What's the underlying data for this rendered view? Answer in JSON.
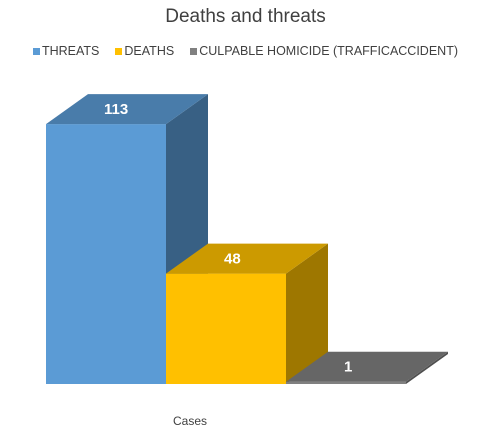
{
  "chart_data": {
    "type": "bar",
    "title": "Deaths and threats",
    "categories": [
      "Cases"
    ],
    "series": [
      {
        "name": "THREATS",
        "values": [
          113
        ],
        "color": "#5B9BD5"
      },
      {
        "name": "DEATHS",
        "values": [
          48
        ],
        "color": "#FFC000"
      },
      {
        "name": "CULPABLE HOMICIDE (TRAFFICACCIDENT)",
        "values": [
          1
        ],
        "color": "#808080"
      }
    ],
    "data_labels": [
      "113",
      "48",
      "1"
    ],
    "ylim": [
      0,
      120
    ],
    "legend": "top",
    "grid": false,
    "style": "3d-column"
  }
}
